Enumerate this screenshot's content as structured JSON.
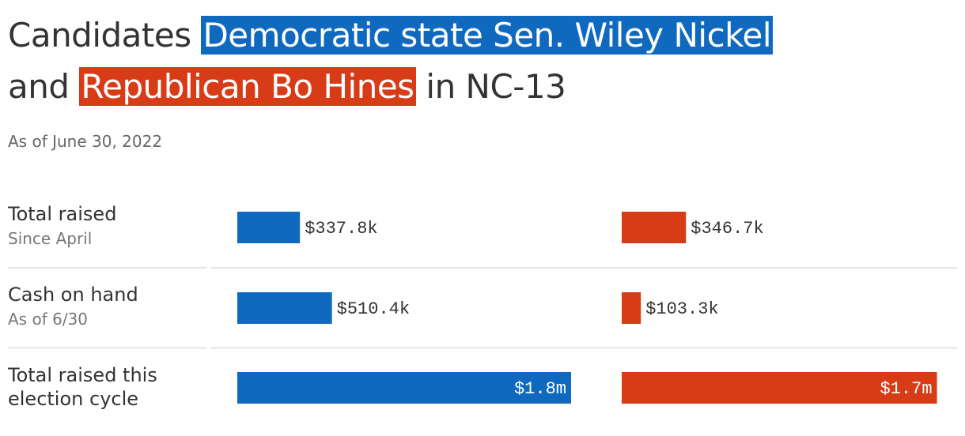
{
  "chart_data": {
    "type": "bar",
    "title_start": "Candidates",
    "title_middle": "and",
    "title_end": "in NC-13",
    "subtitle": "As of June 30, 2022",
    "categories": [
      "Total raised",
      "Cash on hand",
      "Total raised this election cycle"
    ],
    "category_notes": [
      "Since April",
      "As of 6/30",
      null
    ],
    "series": [
      {
        "name": "Democratic state Sen. Wiley Nickel",
        "color": "#0f69bf",
        "values": [
          337800,
          510400,
          1800000
        ],
        "value_labels": [
          "$337.8k",
          "$510.4k",
          "$1.8m"
        ]
      },
      {
        "name": "Republican Bo Hines",
        "color": "#d83c17",
        "values": [
          346700,
          103300,
          1700000
        ],
        "value_labels": [
          "$346.7k",
          "$103.3k",
          "$1.7m"
        ]
      }
    ]
  }
}
